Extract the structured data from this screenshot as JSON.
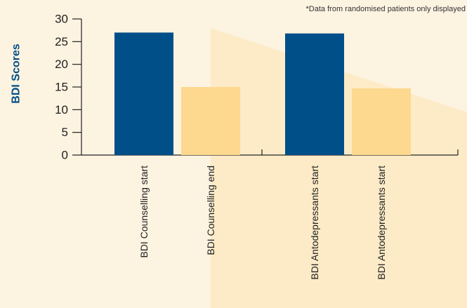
{
  "chart_data": {
    "type": "bar",
    "note": "*Data from randomised patients only displayed",
    "ylabel": "BDI Scores",
    "xlabel": "",
    "categories": [
      "BDI Counselling start",
      "BDI Counselling end",
      "BDI Antodepressants start",
      "BDI Antodepressants start"
    ],
    "values": [
      27,
      15,
      26.8,
      14.7
    ],
    "bar_colors": [
      "#004f88",
      "#fdd88f",
      "#004f88",
      "#fdd88f"
    ],
    "ylim": [
      0,
      30
    ],
    "yticks": [
      0,
      5,
      10,
      15,
      20,
      25,
      30
    ],
    "grid": false,
    "legend": "none"
  },
  "colors": {
    "background": "#fdf3e1",
    "accent_panel": "#fdebc7",
    "dark_bar": "#004f88",
    "light_bar": "#fdd88f",
    "axis": "#222222",
    "ylabel": "#004f88"
  }
}
